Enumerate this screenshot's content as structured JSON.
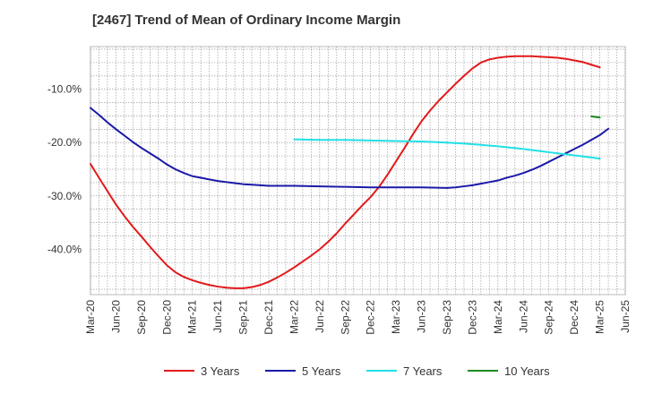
{
  "chart_data": {
    "type": "line",
    "title": "[2467]  Trend of Mean of Ordinary Income Margin",
    "xlabel": "",
    "ylabel": "",
    "x_ticks": [
      "Mar-20",
      "Jun-20",
      "Sep-20",
      "Dec-20",
      "Mar-21",
      "Jun-21",
      "Sep-21",
      "Dec-21",
      "Mar-22",
      "Jun-22",
      "Sep-22",
      "Dec-22",
      "Mar-23",
      "Jun-23",
      "Sep-23",
      "Dec-23",
      "Mar-24",
      "Jun-24",
      "Sep-24",
      "Dec-24",
      "Mar-25",
      "Jun-25"
    ],
    "y_ticks": [
      -40,
      -30,
      -20,
      -10
    ],
    "y_tick_labels": [
      "-40.0%",
      "-30.0%",
      "-20.0%",
      "-10.0%"
    ],
    "ylim": [
      -48.5,
      -2
    ],
    "grid": true,
    "legend_position": "bottom",
    "series": [
      {
        "name": "3 Years",
        "color": "#e31a1c",
        "points": [
          [
            "Mar-20",
            -24.0
          ],
          [
            "Apr-20",
            -26.6
          ],
          [
            "May-20",
            -29.1
          ],
          [
            "Jun-20",
            -31.6
          ],
          [
            "Jul-20",
            -33.8
          ],
          [
            "Aug-20",
            -35.8
          ],
          [
            "Sep-20",
            -37.6
          ],
          [
            "Oct-20",
            -39.5
          ],
          [
            "Nov-20",
            -41.3
          ],
          [
            "Dec-20",
            -43.0
          ],
          [
            "Jan-21",
            -44.3
          ],
          [
            "Feb-21",
            -45.2
          ],
          [
            "Mar-21",
            -45.8
          ],
          [
            "Apr-21",
            -46.3
          ],
          [
            "May-21",
            -46.7
          ],
          [
            "Jun-21",
            -47.0
          ],
          [
            "Jul-21",
            -47.2
          ],
          [
            "Aug-21",
            -47.3
          ],
          [
            "Sep-21",
            -47.3
          ],
          [
            "Oct-21",
            -47.1
          ],
          [
            "Nov-21",
            -46.7
          ],
          [
            "Dec-21",
            -46.1
          ],
          [
            "Jan-22",
            -45.3
          ],
          [
            "Feb-22",
            -44.4
          ],
          [
            "Mar-22",
            -43.4
          ],
          [
            "Apr-22",
            -42.3
          ],
          [
            "May-22",
            -41.2
          ],
          [
            "Jun-22",
            -40.0
          ],
          [
            "Jul-22",
            -38.6
          ],
          [
            "Aug-22",
            -37.0
          ],
          [
            "Sep-22",
            -35.2
          ],
          [
            "Oct-22",
            -33.5
          ],
          [
            "Nov-22",
            -31.8
          ],
          [
            "Dec-22",
            -30.2
          ],
          [
            "Jan-23",
            -28.3
          ],
          [
            "Feb-23",
            -26.0
          ],
          [
            "Mar-23",
            -23.5
          ],
          [
            "Apr-23",
            -21.0
          ],
          [
            "May-23",
            -18.4
          ],
          [
            "Jun-23",
            -16.0
          ],
          [
            "Jul-23",
            -14.0
          ],
          [
            "Aug-23",
            -12.2
          ],
          [
            "Sep-23",
            -10.6
          ],
          [
            "Oct-23",
            -9.0
          ],
          [
            "Nov-23",
            -7.5
          ],
          [
            "Dec-23",
            -6.1
          ],
          [
            "Jan-24",
            -5.0
          ],
          [
            "Feb-24",
            -4.4
          ],
          [
            "Mar-24",
            -4.1
          ],
          [
            "Apr-24",
            -3.9
          ],
          [
            "May-24",
            -3.8
          ],
          [
            "Jun-24",
            -3.8
          ],
          [
            "Jul-24",
            -3.8
          ],
          [
            "Aug-24",
            -3.9
          ],
          [
            "Sep-24",
            -4.0
          ],
          [
            "Oct-24",
            -4.1
          ],
          [
            "Nov-24",
            -4.3
          ],
          [
            "Dec-24",
            -4.6
          ],
          [
            "Jan-25",
            -4.9
          ],
          [
            "Feb-25",
            -5.4
          ],
          [
            "Mar-25",
            -5.9
          ]
        ]
      },
      {
        "name": "5 Years",
        "color": "#1a1aa8",
        "points": [
          [
            "Mar-20",
            -13.5
          ],
          [
            "Apr-20",
            -14.8
          ],
          [
            "May-20",
            -16.2
          ],
          [
            "Jun-20",
            -17.5
          ],
          [
            "Jul-20",
            -18.7
          ],
          [
            "Aug-20",
            -19.9
          ],
          [
            "Sep-20",
            -21.0
          ],
          [
            "Oct-20",
            -22.0
          ],
          [
            "Nov-20",
            -23.0
          ],
          [
            "Dec-20",
            -24.1
          ],
          [
            "Jan-21",
            -25.0
          ],
          [
            "Feb-21",
            -25.7
          ],
          [
            "Mar-21",
            -26.3
          ],
          [
            "Apr-21",
            -26.6
          ],
          [
            "May-21",
            -26.9
          ],
          [
            "Jun-21",
            -27.2
          ],
          [
            "Jul-21",
            -27.4
          ],
          [
            "Aug-21",
            -27.6
          ],
          [
            "Sep-21",
            -27.8
          ],
          [
            "Oct-21",
            -27.9
          ],
          [
            "Nov-21",
            -28.0
          ],
          [
            "Dec-21",
            -28.1
          ],
          [
            "Feb-22",
            -28.1
          ],
          [
            "Mar-22",
            -28.1
          ],
          [
            "Jun-22",
            -28.2
          ],
          [
            "Sep-22",
            -28.3
          ],
          [
            "Dec-22",
            -28.4
          ],
          [
            "Mar-23",
            -28.4
          ],
          [
            "Jun-23",
            -28.4
          ],
          [
            "Sep-23",
            -28.5
          ],
          [
            "Oct-23",
            -28.4
          ],
          [
            "Nov-23",
            -28.2
          ],
          [
            "Dec-23",
            -28.0
          ],
          [
            "Jan-24",
            -27.7
          ],
          [
            "Feb-24",
            -27.4
          ],
          [
            "Mar-24",
            -27.1
          ],
          [
            "Apr-24",
            -26.6
          ],
          [
            "May-24",
            -26.2
          ],
          [
            "Jun-24",
            -25.7
          ],
          [
            "Jul-24",
            -25.1
          ],
          [
            "Aug-24",
            -24.4
          ],
          [
            "Sep-24",
            -23.6
          ],
          [
            "Oct-24",
            -22.8
          ],
          [
            "Nov-24",
            -22.0
          ],
          [
            "Dec-24",
            -21.2
          ],
          [
            "Jan-25",
            -20.4
          ],
          [
            "Feb-25",
            -19.5
          ],
          [
            "Mar-25",
            -18.6
          ],
          [
            "Apr-25",
            -17.4
          ]
        ]
      },
      {
        "name": "7 Years",
        "color": "#22e0e8",
        "points": [
          [
            "Mar-22",
            -19.4
          ],
          [
            "Jun-22",
            -19.5
          ],
          [
            "Sep-22",
            -19.5
          ],
          [
            "Dec-22",
            -19.6
          ],
          [
            "Mar-23",
            -19.7
          ],
          [
            "Jun-23",
            -19.8
          ],
          [
            "Sep-23",
            -20.0
          ],
          [
            "Dec-23",
            -20.3
          ],
          [
            "Mar-24",
            -20.7
          ],
          [
            "Jun-24",
            -21.2
          ],
          [
            "Sep-24",
            -21.8
          ],
          [
            "Dec-24",
            -22.4
          ],
          [
            "Mar-25",
            -23.0
          ]
        ]
      },
      {
        "name": "10 Years",
        "color": "#1e8a1e",
        "points": [
          [
            "Feb-25",
            -15.1
          ],
          [
            "Mar-25",
            -15.3
          ]
        ]
      }
    ]
  }
}
